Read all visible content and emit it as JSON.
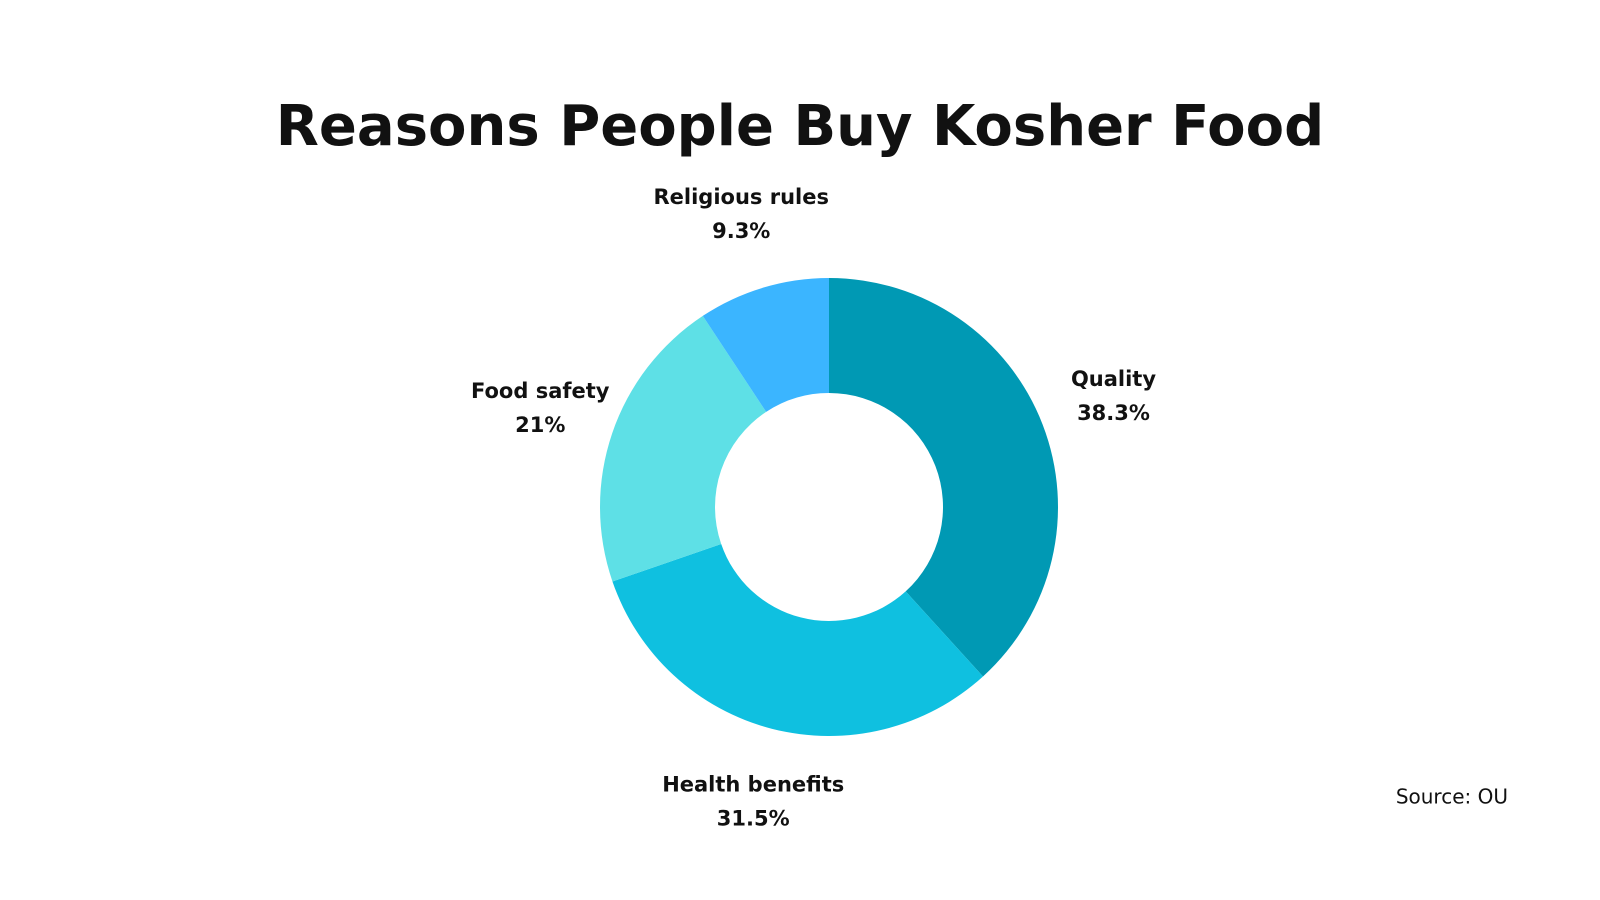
{
  "chart_data": {
    "type": "donut",
    "title": "Reasons People Buy Kosher Food",
    "categories": [
      "Quality",
      "Health benefits",
      "Food safety",
      "Religious rules"
    ],
    "values": [
      38.3,
      31.5,
      21,
      9.3
    ],
    "value_labels": [
      "38.3%",
      "31.5%",
      "21%",
      "9.3%"
    ],
    "colors": [
      "#0099b4",
      "#0fc0e0",
      "#5ee0e6",
      "#3bb5ff"
    ],
    "source": "Source: OU"
  }
}
